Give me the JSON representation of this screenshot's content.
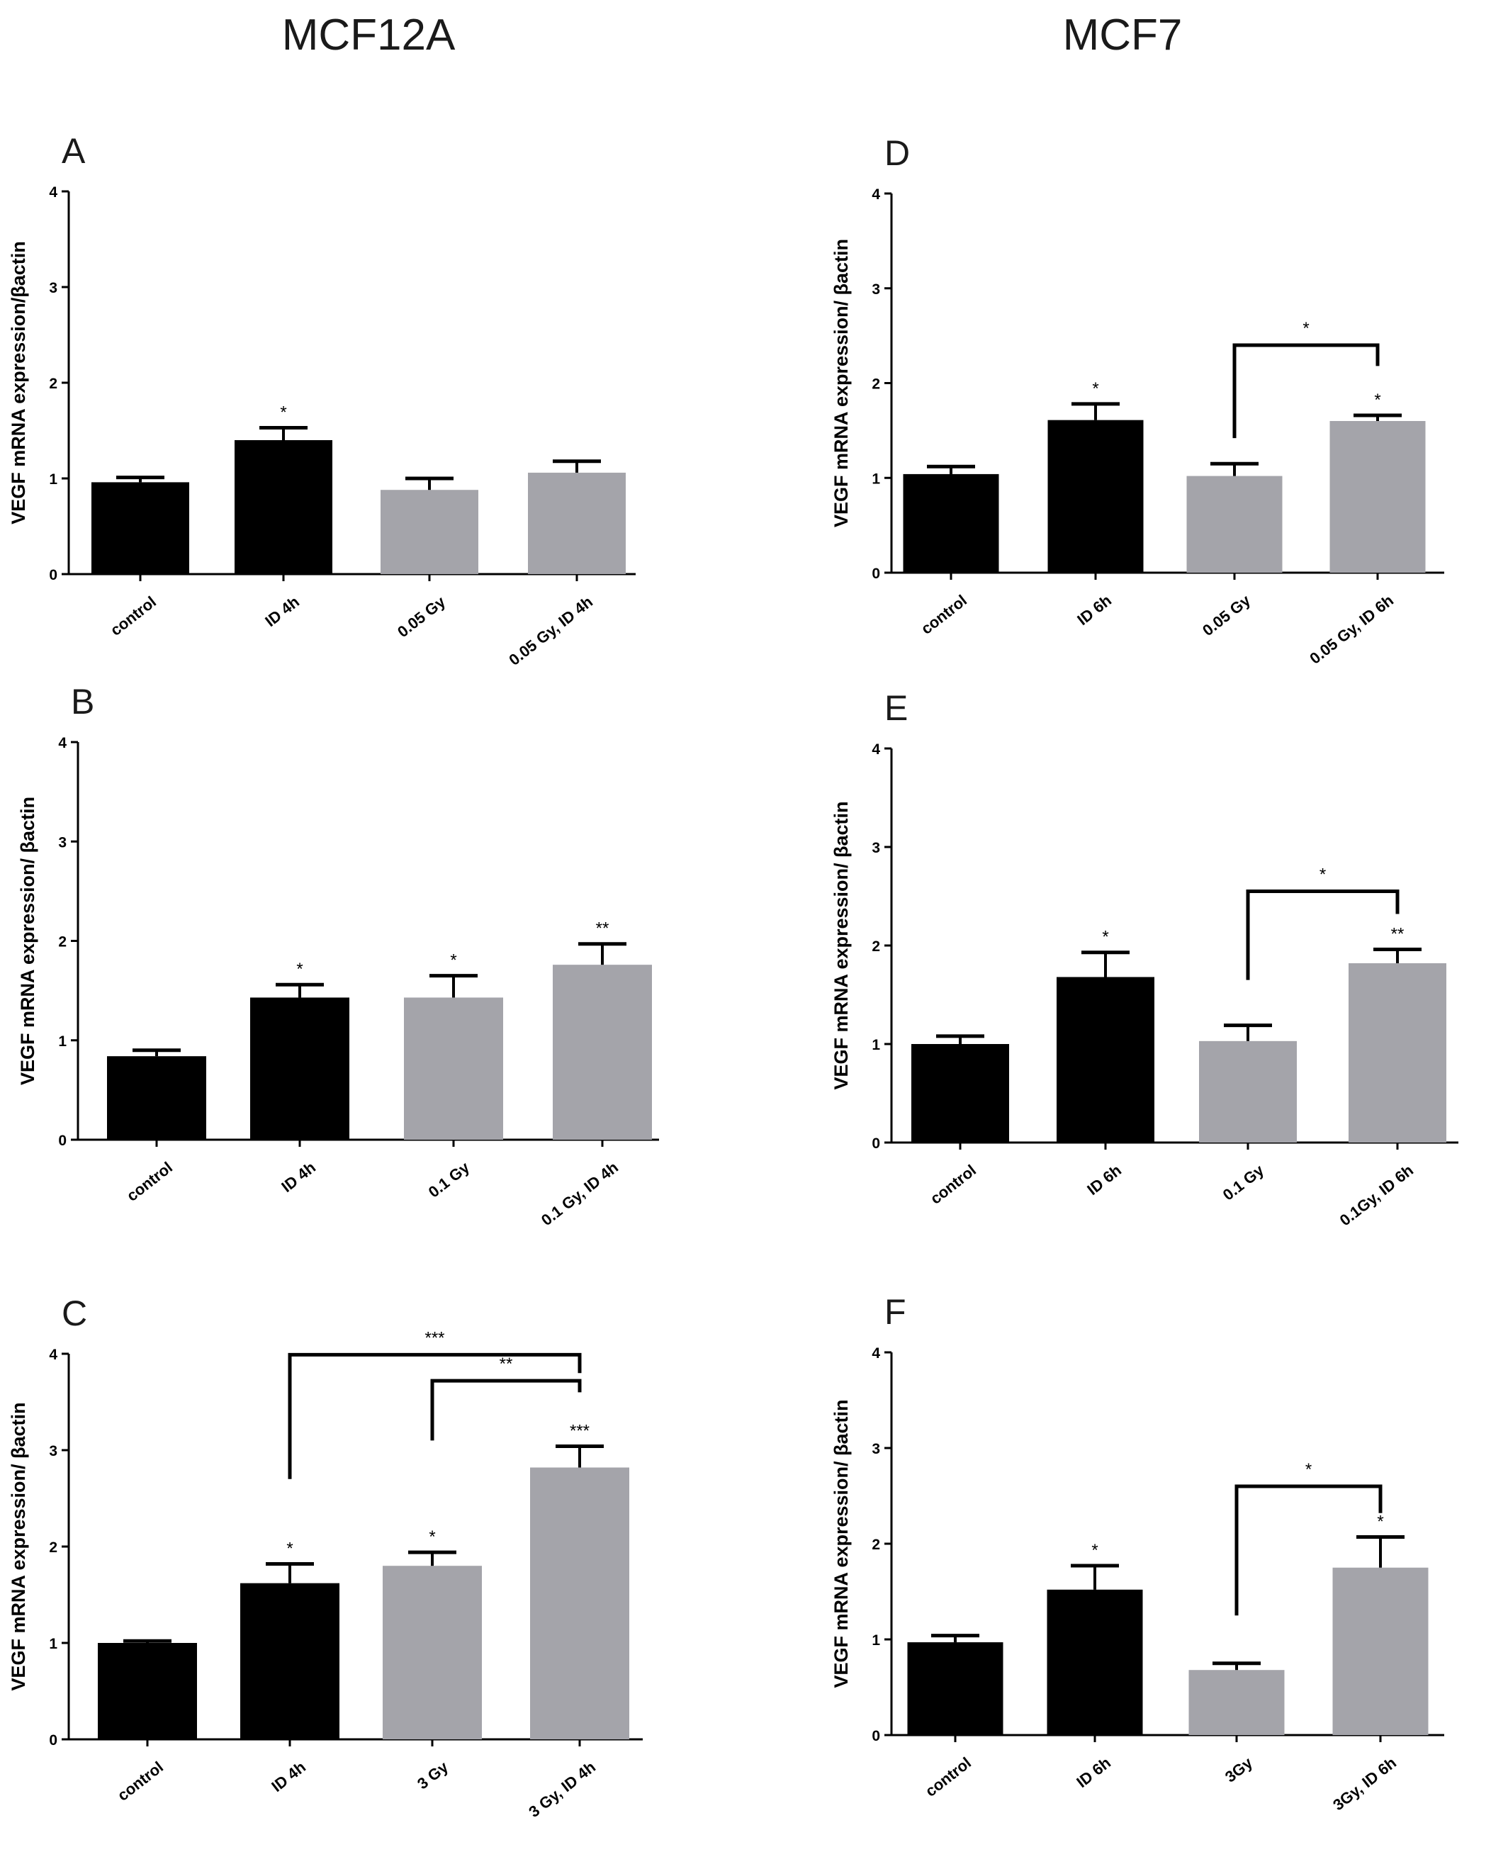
{
  "titles": {
    "left": "MCF12A",
    "right": "MCF7"
  },
  "colors": {
    "black_bar": "#000000",
    "grey_bar": "#a4a4aa",
    "axis": "#000000"
  },
  "chart_data": [
    {
      "panel": "A",
      "type": "bar",
      "column": "left",
      "ylabel": "VEGF mRNA expression/βactin",
      "ylim": [
        0,
        4
      ],
      "yticks": [
        "0",
        "1",
        "2",
        "3",
        "4"
      ],
      "categories": [
        "control",
        "ID 4h",
        "0.05 Gy",
        "0.05 Gy, ID 4h"
      ],
      "values": [
        0.96,
        1.4,
        0.88,
        1.06
      ],
      "errors": [
        0.05,
        0.13,
        0.12,
        0.12
      ],
      "colors": [
        "black",
        "black",
        "grey",
        "grey"
      ],
      "bar_stars": [
        "",
        "*",
        "",
        ""
      ],
      "brackets": []
    },
    {
      "panel": "B",
      "type": "bar",
      "column": "left",
      "ylabel": "VEGF mRNA expression/ βactin",
      "ylim": [
        0,
        4
      ],
      "yticks": [
        "0",
        "1",
        "2",
        "3",
        "4"
      ],
      "categories": [
        "control",
        "ID 4h",
        "0.1 Gy",
        "0.1 Gy, ID 4h"
      ],
      "values": [
        0.84,
        1.43,
        1.43,
        1.76
      ],
      "errors": [
        0.06,
        0.13,
        0.22,
        0.21
      ],
      "colors": [
        "black",
        "black",
        "grey",
        "grey"
      ],
      "bar_stars": [
        "",
        "*",
        "*",
        "**"
      ],
      "brackets": []
    },
    {
      "panel": "C",
      "type": "bar",
      "column": "left",
      "ylabel": "VEGF mRNA expression/ βactin",
      "ylim": [
        0,
        4
      ],
      "yticks": [
        "0",
        "1",
        "2",
        "3",
        "4"
      ],
      "categories": [
        "control",
        "ID 4h",
        "3 Gy",
        "3 Gy, ID 4h"
      ],
      "values": [
        1.0,
        1.62,
        1.8,
        2.82
      ],
      "errors": [
        0.02,
        0.2,
        0.14,
        0.22
      ],
      "colors": [
        "black",
        "black",
        "grey",
        "grey"
      ],
      "bar_stars": [
        "",
        "*",
        "*",
        "***"
      ],
      "brackets": [
        {
          "from": 1,
          "to": 3,
          "y": 3.99,
          "left_bottom": 2.7,
          "right_bottom": 3.8,
          "label": "***"
        },
        {
          "from": 2,
          "to": 3,
          "y": 3.72,
          "left_bottom": 3.1,
          "right_bottom": 3.6,
          "label": "**"
        }
      ]
    },
    {
      "panel": "D",
      "type": "bar",
      "column": "right",
      "ylabel": "VEGF mRNA expression/ βactin",
      "ylim": [
        0,
        4
      ],
      "yticks": [
        "0",
        "1",
        "2",
        "3",
        "4"
      ],
      "categories": [
        "control",
        "ID 6h",
        "0.05 Gy",
        "0.05 Gy, ID 6h"
      ],
      "values": [
        1.04,
        1.61,
        1.02,
        1.6
      ],
      "errors": [
        0.08,
        0.17,
        0.13,
        0.06
      ],
      "colors": [
        "black",
        "black",
        "grey",
        "grey"
      ],
      "bar_stars": [
        "",
        "*",
        "",
        "*"
      ],
      "brackets": [
        {
          "from": 2,
          "to": 3,
          "y": 2.4,
          "left_bottom": 1.42,
          "right_bottom": 2.18,
          "label": "*"
        }
      ]
    },
    {
      "panel": "E",
      "type": "bar",
      "column": "right",
      "ylabel": "VEGF mRNA expression/ βactin",
      "ylim": [
        0,
        4
      ],
      "yticks": [
        "0",
        "1",
        "2",
        "3",
        "4"
      ],
      "categories": [
        "control",
        "ID 6h",
        "0.1 Gy",
        "0.1Gy, ID 6h"
      ],
      "values": [
        1.0,
        1.68,
        1.03,
        1.82
      ],
      "errors": [
        0.08,
        0.25,
        0.16,
        0.14
      ],
      "colors": [
        "black",
        "black",
        "grey",
        "grey"
      ],
      "bar_stars": [
        "",
        "*",
        "",
        "**"
      ],
      "brackets": [
        {
          "from": 2,
          "to": 3,
          "y": 2.55,
          "left_bottom": 1.65,
          "right_bottom": 2.32,
          "label": "*"
        }
      ]
    },
    {
      "panel": "F",
      "type": "bar",
      "column": "right",
      "ylabel": "VEGF mRNA expression/ βactin",
      "ylim": [
        0,
        4
      ],
      "yticks": [
        "0",
        "1",
        "2",
        "3",
        "4"
      ],
      "categories": [
        "control",
        "ID 6h",
        "3Gy",
        "3Gy, ID 6h"
      ],
      "values": [
        0.97,
        1.52,
        0.68,
        1.75
      ],
      "errors": [
        0.07,
        0.25,
        0.07,
        0.32
      ],
      "colors": [
        "black",
        "black",
        "grey",
        "grey"
      ],
      "bar_stars": [
        "",
        "*",
        "",
        "*"
      ],
      "brackets": [
        {
          "from": 2,
          "to": 3,
          "y": 2.6,
          "left_bottom": 1.25,
          "right_bottom": 2.32,
          "label": "*"
        }
      ]
    }
  ]
}
